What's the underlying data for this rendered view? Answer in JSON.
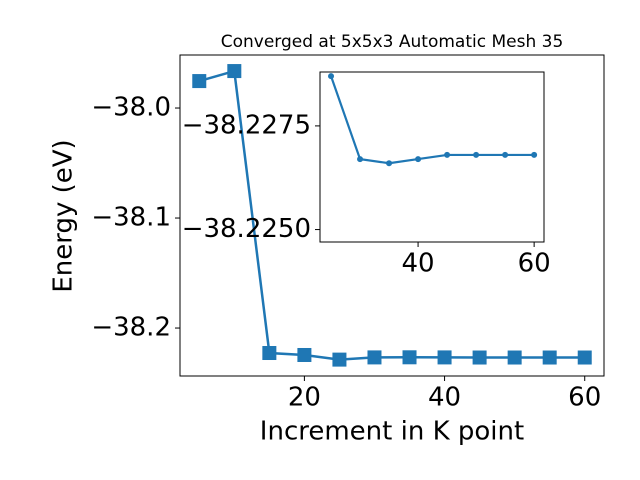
{
  "chart_data": [
    {
      "type": "line",
      "title": "Converged at 5x5x3 Automatic Mesh 35",
      "xlabel": "Increment in K point",
      "ylabel": "Energy (eV)",
      "x": [
        5,
        10,
        15,
        20,
        25,
        30,
        35,
        40,
        45,
        50,
        55,
        60
      ],
      "series": [
        {
          "color": "#1f77b4",
          "marker": "square",
          "values": [
            -37.9755,
            -37.9664,
            -38.2227,
            -38.2245,
            -38.2287,
            -38.2267,
            -38.2266,
            -38.2267,
            -38.2268,
            -38.2268,
            -38.2268,
            -38.2268
          ]
        }
      ],
      "xlim": [
        2.25,
        62.75
      ],
      "ylim": [
        -38.2436,
        -37.9518
      ],
      "xticks": [
        20,
        40,
        60
      ],
      "yticks": [
        {
          "value": -38.2,
          "label": "−38.2"
        },
        {
          "value": -38.1,
          "label": "−38.1"
        },
        {
          "value": -38.0,
          "label": "−38.0"
        }
      ]
    },
    {
      "type": "line",
      "x": [
        25,
        30,
        35,
        40,
        45,
        50,
        55,
        60
      ],
      "series": [
        {
          "color": "#1f77b4",
          "marker": "circle",
          "values": [
            -38.2287,
            -38.2267,
            -38.2266,
            -38.2267,
            -38.2268,
            -38.2268,
            -38.2268,
            -38.2268
          ]
        }
      ],
      "xlim": [
        23.1,
        61.7
      ],
      "ylim": [
        -38.2247,
        -38.2288
      ],
      "xticks": [
        40,
        60
      ],
      "yticks": [
        {
          "value": -38.225,
          "label": "−38.2250"
        },
        {
          "value": -38.2275,
          "label": "−38.2275"
        }
      ]
    }
  ]
}
